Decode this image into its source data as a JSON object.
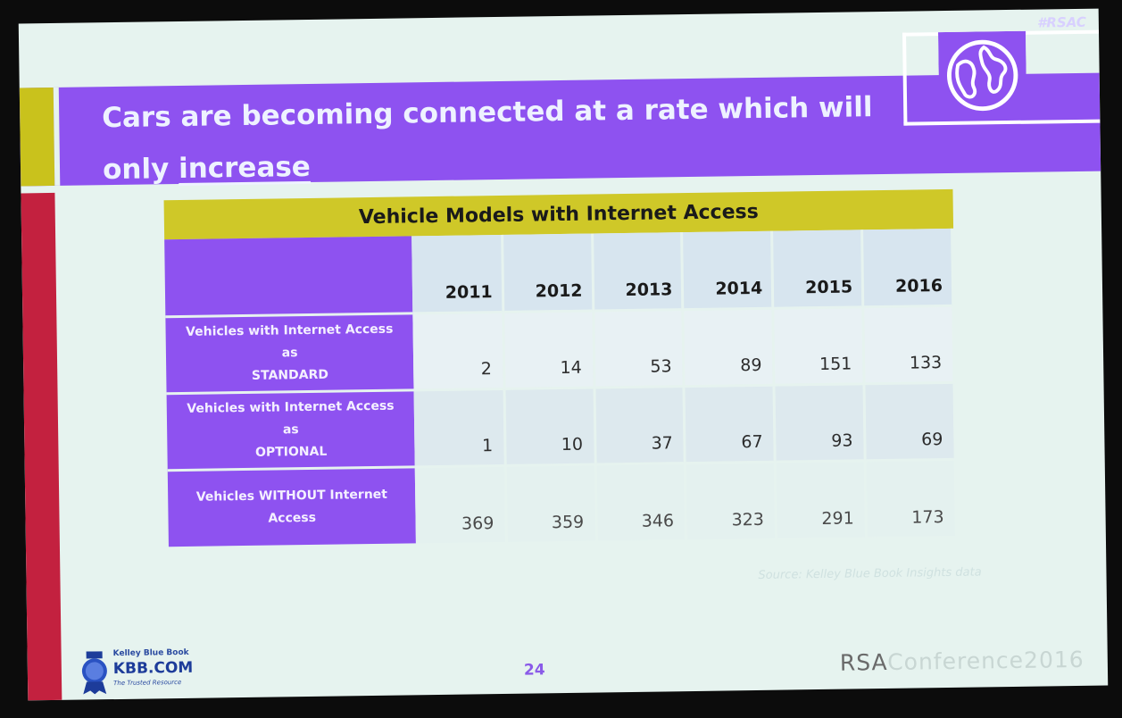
{
  "slide": {
    "title_line1": "Cars are becoming connected at a rate which will",
    "title_line2_prefix": "only ",
    "title_line2_underlined": "increase",
    "hashtag": "#RSAC",
    "page_number": "24",
    "footer_brand_rsa": "RSA",
    "footer_brand_rest": "Conference2016",
    "source_note": "Source: Kelley Blue Book Insights data",
    "logo": {
      "top_line": "Kelley Blue Book",
      "name": "KBB.COM",
      "tagline": "The Trusted Resource"
    },
    "colors": {
      "purple": "#8e52f0",
      "yellow": "#cfc828",
      "red": "#c3213f"
    },
    "icons": [
      "globe-icon",
      "kbb-badge-icon"
    ]
  },
  "table": {
    "title": "Vehicle Models with Internet Access",
    "years": [
      "2011",
      "2012",
      "2013",
      "2014",
      "2015",
      "2016"
    ],
    "rows": [
      {
        "label_line1": "Vehicles with Internet Access as",
        "label_line2": "STANDARD",
        "values": [
          "2",
          "14",
          "53",
          "89",
          "151",
          "133"
        ]
      },
      {
        "label_line1": "Vehicles with Internet Access as",
        "label_line2": "OPTIONAL",
        "values": [
          "1",
          "10",
          "37",
          "67",
          "93",
          "69"
        ]
      },
      {
        "label_line1": "Vehicles WITHOUT Internet",
        "label_line2": "Access",
        "values": [
          "369",
          "359",
          "346",
          "323",
          "291",
          "173"
        ]
      }
    ]
  }
}
